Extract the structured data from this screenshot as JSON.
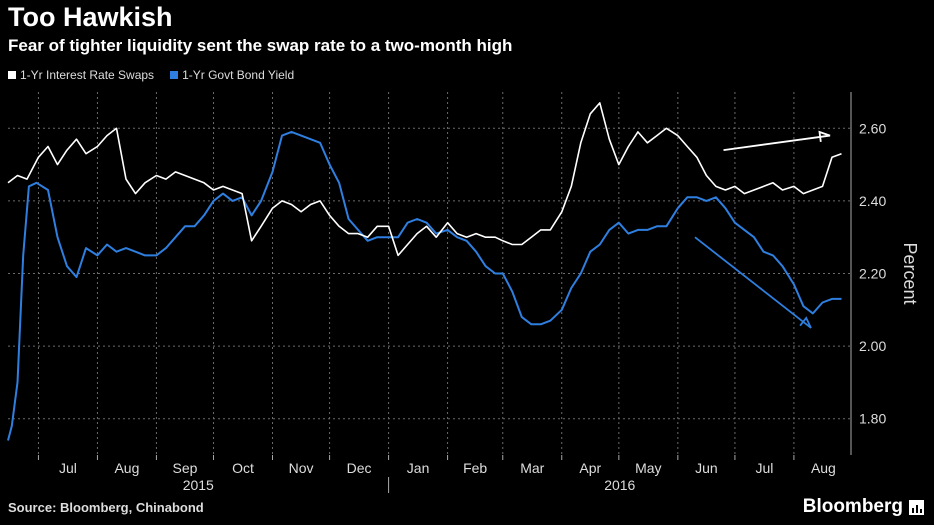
{
  "title": "Too Hawkish",
  "subtitle": "Fear of tighter liquidity sent the swap rate to a two-month high",
  "source": "Source: Bloomberg, Chinabond",
  "brand": "Bloomberg",
  "colors": {
    "swaps": "#ffffff",
    "bond": "#2f7fe0",
    "background": "#000000",
    "grid": "#6b6b6b"
  },
  "chart_data": {
    "type": "line",
    "title": "Too Hawkish",
    "subtitle": "Fear of tighter liquidity sent the swap rate to a two-month high",
    "ylabel": "Percent",
    "ylim": [
      1.7,
      2.7
    ],
    "yticks": [
      1.8,
      2.0,
      2.2,
      2.4,
      2.6
    ],
    "ytick_labels": [
      "1.80",
      "2.00",
      "2.20",
      "2.40",
      "2.60"
    ],
    "y_axis_side": "right",
    "grid": true,
    "legend_position": "top-left",
    "xlim": [
      "2015-06-15",
      "2016-08-31"
    ],
    "x_months": [
      "2015-07-01",
      "2015-08-01",
      "2015-09-01",
      "2015-10-01",
      "2015-11-01",
      "2015-12-01",
      "2016-01-01",
      "2016-02-01",
      "2016-03-01",
      "2016-04-01",
      "2016-05-01",
      "2016-06-01",
      "2016-07-01",
      "2016-08-01"
    ],
    "x_month_labels": [
      "Jul",
      "Aug",
      "Sep",
      "Oct",
      "Nov",
      "Dec",
      "Jan",
      "Feb",
      "Mar",
      "Apr",
      "May",
      "Jun",
      "Jul",
      "Aug"
    ],
    "year_labels": [
      "2015",
      "2016"
    ],
    "series": [
      {
        "name": "1-Yr Interest Rate Swaps",
        "x": [
          "2015-06-15",
          "2015-06-20",
          "2015-06-25",
          "2015-07-01",
          "2015-07-06",
          "2015-07-11",
          "2015-07-16",
          "2015-07-21",
          "2015-07-26",
          "2015-08-01",
          "2015-08-06",
          "2015-08-11",
          "2015-08-16",
          "2015-08-21",
          "2015-08-26",
          "2015-09-01",
          "2015-09-06",
          "2015-09-11",
          "2015-09-16",
          "2015-09-21",
          "2015-09-26",
          "2015-10-01",
          "2015-10-06",
          "2015-10-11",
          "2015-10-16",
          "2015-10-21",
          "2015-10-26",
          "2015-11-01",
          "2015-11-06",
          "2015-11-11",
          "2015-11-16",
          "2015-11-21",
          "2015-11-26",
          "2015-12-01",
          "2015-12-06",
          "2015-12-11",
          "2015-12-16",
          "2015-12-21",
          "2015-12-26",
          "2016-01-01",
          "2016-01-06",
          "2016-01-11",
          "2016-01-16",
          "2016-01-21",
          "2016-01-26",
          "2016-02-01",
          "2016-02-06",
          "2016-02-11",
          "2016-02-16",
          "2016-02-21",
          "2016-02-26",
          "2016-03-01",
          "2016-03-06",
          "2016-03-11",
          "2016-03-16",
          "2016-03-21",
          "2016-03-26",
          "2016-04-01",
          "2016-04-06",
          "2016-04-11",
          "2016-04-16",
          "2016-04-21",
          "2016-04-26",
          "2016-05-01",
          "2016-05-06",
          "2016-05-11",
          "2016-05-16",
          "2016-05-21",
          "2016-05-26",
          "2016-06-01",
          "2016-06-06",
          "2016-06-11",
          "2016-06-16",
          "2016-06-21",
          "2016-06-26",
          "2016-07-01",
          "2016-07-06",
          "2016-07-11",
          "2016-07-16",
          "2016-07-21",
          "2016-07-26",
          "2016-08-01",
          "2016-08-06",
          "2016-08-11",
          "2016-08-16",
          "2016-08-21",
          "2016-08-26"
        ],
        "values": [
          2.45,
          2.47,
          2.46,
          2.52,
          2.55,
          2.5,
          2.54,
          2.57,
          2.53,
          2.55,
          2.58,
          2.6,
          2.46,
          2.42,
          2.45,
          2.47,
          2.46,
          2.48,
          2.47,
          2.46,
          2.45,
          2.43,
          2.44,
          2.43,
          2.42,
          2.29,
          2.33,
          2.38,
          2.4,
          2.39,
          2.37,
          2.39,
          2.4,
          2.36,
          2.33,
          2.31,
          2.31,
          2.3,
          2.33,
          2.33,
          2.25,
          2.28,
          2.31,
          2.33,
          2.3,
          2.34,
          2.31,
          2.3,
          2.31,
          2.3,
          2.3,
          2.29,
          2.28,
          2.28,
          2.3,
          2.32,
          2.32,
          2.37,
          2.44,
          2.56,
          2.64,
          2.67,
          2.57,
          2.5,
          2.55,
          2.59,
          2.56,
          2.58,
          2.6,
          2.58,
          2.55,
          2.52,
          2.47,
          2.44,
          2.43,
          2.44,
          2.42,
          2.43,
          2.44,
          2.45,
          2.43,
          2.44,
          2.42,
          2.43,
          2.44,
          2.52,
          2.53
        ],
        "color": "#ffffff"
      },
      {
        "name": "1-Yr Govt Bond Yield",
        "x": [
          "2015-06-15",
          "2015-06-17",
          "2015-06-20",
          "2015-06-23",
          "2015-06-26",
          "2015-06-30",
          "2015-07-06",
          "2015-07-11",
          "2015-07-16",
          "2015-07-21",
          "2015-07-26",
          "2015-08-01",
          "2015-08-06",
          "2015-08-11",
          "2015-08-16",
          "2015-08-21",
          "2015-08-26",
          "2015-09-01",
          "2015-09-06",
          "2015-09-11",
          "2015-09-16",
          "2015-09-21",
          "2015-09-26",
          "2015-10-01",
          "2015-10-06",
          "2015-10-11",
          "2015-10-16",
          "2015-10-21",
          "2015-10-26",
          "2015-11-01",
          "2015-11-06",
          "2015-11-11",
          "2015-11-16",
          "2015-11-21",
          "2015-11-26",
          "2015-12-01",
          "2015-12-06",
          "2015-12-11",
          "2015-12-16",
          "2015-12-21",
          "2015-12-26",
          "2016-01-01",
          "2016-01-06",
          "2016-01-11",
          "2016-01-16",
          "2016-01-21",
          "2016-01-26",
          "2016-02-01",
          "2016-02-06",
          "2016-02-11",
          "2016-02-16",
          "2016-02-21",
          "2016-02-26",
          "2016-03-01",
          "2016-03-06",
          "2016-03-11",
          "2016-03-16",
          "2016-03-21",
          "2016-03-26",
          "2016-04-01",
          "2016-04-06",
          "2016-04-11",
          "2016-04-16",
          "2016-04-21",
          "2016-04-26",
          "2016-05-01",
          "2016-05-06",
          "2016-05-11",
          "2016-05-16",
          "2016-05-21",
          "2016-05-26",
          "2016-06-01",
          "2016-06-06",
          "2016-06-11",
          "2016-06-16",
          "2016-06-21",
          "2016-06-26",
          "2016-07-01",
          "2016-07-06",
          "2016-07-11",
          "2016-07-16",
          "2016-07-21",
          "2016-07-26",
          "2016-08-01",
          "2016-08-06",
          "2016-08-11",
          "2016-08-16",
          "2016-08-21",
          "2016-08-26"
        ],
        "values": [
          1.74,
          1.78,
          1.9,
          2.25,
          2.44,
          2.45,
          2.43,
          2.3,
          2.22,
          2.19,
          2.27,
          2.25,
          2.28,
          2.26,
          2.27,
          2.26,
          2.25,
          2.25,
          2.27,
          2.3,
          2.33,
          2.33,
          2.36,
          2.4,
          2.42,
          2.4,
          2.41,
          2.36,
          2.4,
          2.48,
          2.58,
          2.59,
          2.58,
          2.57,
          2.56,
          2.5,
          2.45,
          2.35,
          2.32,
          2.29,
          2.3,
          2.3,
          2.3,
          2.34,
          2.35,
          2.34,
          2.31,
          2.32,
          2.3,
          2.29,
          2.26,
          2.22,
          2.2,
          2.2,
          2.15,
          2.08,
          2.06,
          2.06,
          2.07,
          2.1,
          2.16,
          2.2,
          2.26,
          2.28,
          2.32,
          2.34,
          2.31,
          2.32,
          2.32,
          2.33,
          2.33,
          2.38,
          2.41,
          2.41,
          2.4,
          2.41,
          2.38,
          2.34,
          2.32,
          2.3,
          2.26,
          2.25,
          2.22,
          2.17,
          2.11,
          2.09,
          2.12,
          2.13,
          2.13
        ],
        "color": "#2f7fe0"
      }
    ],
    "annotations": [
      {
        "type": "arrow",
        "color": "#ffffff",
        "from": [
          "2016-06-25",
          2.54
        ],
        "to": [
          "2016-08-20",
          2.58
        ]
      },
      {
        "type": "arrow",
        "color": "#2f7fe0",
        "from": [
          "2016-06-10",
          2.3
        ],
        "to": [
          "2016-08-10",
          2.05
        ]
      }
    ]
  }
}
